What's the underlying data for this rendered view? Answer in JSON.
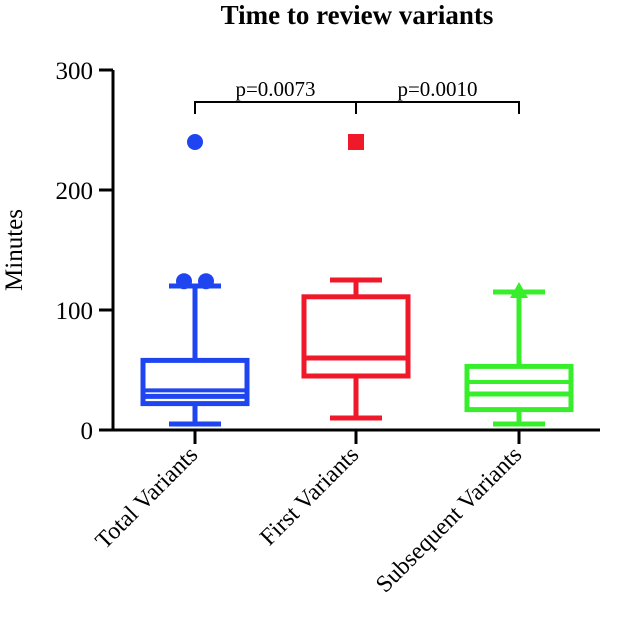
{
  "chart_data": {
    "type": "box",
    "title": "Time to review variants",
    "xlabel": "",
    "ylabel": "Minutes",
    "ylim": [
      0,
      300
    ],
    "yticks": [
      0,
      100,
      200,
      300
    ],
    "grid": false,
    "categories": [
      "Total Variants",
      "First Variants",
      "Subsequent  Variants"
    ],
    "series": [
      {
        "category": "Total Variants",
        "color": "#1f45f0",
        "whisker_low": 5,
        "q1": 22,
        "median": 28,
        "q3": 58,
        "whisker_high": 120,
        "mean_marker": 33,
        "outliers": [
          124,
          124,
          240
        ],
        "outlier_marker": "circle"
      },
      {
        "category": "First Variants",
        "color": "#f0192a",
        "whisker_low": 10,
        "q1": 45,
        "median": 60,
        "q3": 111,
        "whisker_high": 125,
        "mean_marker": null,
        "outliers": [
          240
        ],
        "outlier_marker": "square"
      },
      {
        "category": "Subsequent  Variants",
        "color": "#36ef2a",
        "whisker_low": 5,
        "q1": 17,
        "median": 30,
        "q3": 53,
        "whisker_high": 115,
        "mean_marker": 40,
        "outliers": [
          115
        ],
        "outlier_marker": "triangle"
      }
    ],
    "annotations": [
      {
        "text": "p=0.0073",
        "from": 0,
        "to": 1,
        "y": 280
      },
      {
        "text": "p=0.0010",
        "from": 1,
        "to": 2,
        "y": 280
      }
    ]
  }
}
